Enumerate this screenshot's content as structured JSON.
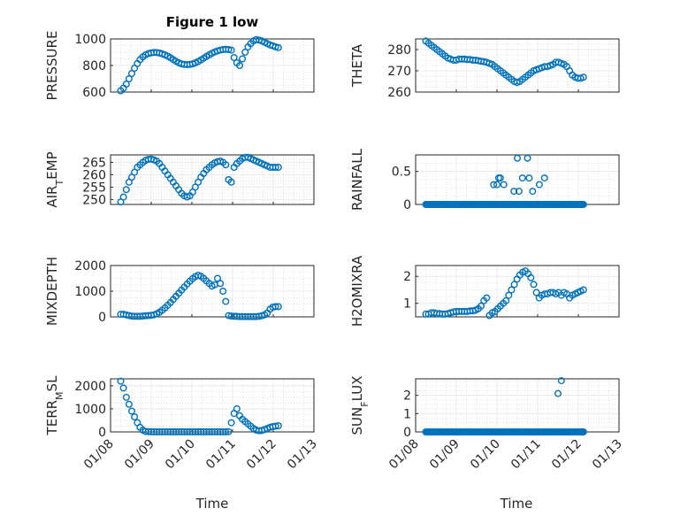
{
  "figure": {
    "title": "Figure 1 low",
    "xlabel": "Time",
    "marker_color": "#0072bd",
    "x_ticks": [
      "01/08",
      "01/09",
      "01/10",
      "01/11",
      "01/12",
      "01/13"
    ]
  },
  "chart_data": [
    {
      "type": "scatter",
      "title": "Figure 1 low",
      "xlabel": "",
      "ylabel": "PRESSURE",
      "xlim": [
        "2000-01-08",
        "2000-01-13"
      ],
      "ylim": [
        600,
        1000
      ],
      "yticks": [
        600,
        800,
        1000
      ],
      "ytick_labels": [
        "600",
        "800",
        "1000"
      ],
      "xticks_shown": false,
      "grid": true,
      "marker": "circle-open",
      "x_start": "2000-01-08 06:00",
      "x_end": "2000-01-12 03:00",
      "y_values": [
        610,
        630,
        660,
        700,
        740,
        780,
        815,
        845,
        865,
        880,
        890,
        895,
        898,
        897,
        894,
        888,
        880,
        870,
        858,
        845,
        832,
        820,
        812,
        808,
        806,
        808,
        812,
        820,
        830,
        842,
        855,
        868,
        880,
        892,
        902,
        910,
        916,
        920,
        922,
        920,
        916,
        860,
        820,
        800,
        850,
        900,
        940,
        965,
        985,
        995,
        992,
        985,
        975,
        965,
        955,
        948,
        940,
        935
      ]
    },
    {
      "type": "scatter",
      "title": "",
      "xlabel": "",
      "ylabel": "THETA",
      "xlim": [
        "2000-01-08",
        "2000-01-13"
      ],
      "ylim": [
        260,
        285
      ],
      "yticks": [
        260,
        270,
        280
      ],
      "ytick_labels": [
        "260",
        "270",
        "280"
      ],
      "xticks_shown": false,
      "grid": true,
      "marker": "circle-open",
      "x_start": "2000-01-08 06:00",
      "x_end": "2000-01-12 03:00",
      "y_values": [
        284,
        283,
        282,
        281,
        280,
        279,
        278,
        277,
        276,
        275.5,
        275,
        275,
        275.5,
        275.5,
        275.5,
        275.3,
        275.3,
        275,
        275,
        274.8,
        274.5,
        274.3,
        274,
        273.5,
        273,
        272,
        271,
        270,
        269,
        268,
        267,
        266,
        265,
        264.5,
        265,
        266,
        267,
        268,
        269,
        270,
        270.5,
        271,
        271.5,
        272,
        272,
        272.5,
        273,
        274,
        274,
        273.5,
        273,
        272,
        270,
        268,
        267,
        266.5,
        266.5,
        267
      ]
    },
    {
      "type": "scatter",
      "title": "",
      "xlabel": "",
      "ylabel": "AIR_TEMP",
      "xlim": [
        "2000-01-08",
        "2000-01-13"
      ],
      "ylim": [
        248,
        268
      ],
      "yticks": [
        250,
        255,
        260,
        265
      ],
      "ytick_labels": [
        "250",
        "255",
        "260",
        "265"
      ],
      "xticks_shown": false,
      "grid": true,
      "marker": "circle-open",
      "x_start": "2000-01-08 06:00",
      "x_end": "2000-01-12 03:00",
      "y_values": [
        249,
        251,
        254,
        257,
        259,
        261,
        263,
        264,
        265,
        265.8,
        266.2,
        266.3,
        266,
        265.5,
        264.5,
        263,
        261.5,
        260,
        258.5,
        257,
        255.5,
        254,
        252.5,
        251.5,
        251,
        251.5,
        253,
        255,
        257,
        259,
        260.5,
        262,
        263,
        264,
        264.8,
        265.3,
        265.5,
        265,
        264,
        258,
        257,
        263,
        264.5,
        265.5,
        266.5,
        267,
        267,
        266.5,
        266,
        265.5,
        265,
        264.5,
        264,
        263.5,
        263,
        263,
        263,
        263
      ]
    },
    {
      "type": "scatter",
      "title": "",
      "xlabel": "",
      "ylabel": "RAINFALL",
      "xlim": [
        "2000-01-08",
        "2000-01-13"
      ],
      "ylim": [
        0,
        0.75
      ],
      "yticks": [
        0,
        0.5
      ],
      "ytick_labels": [
        "0",
        "0.5"
      ],
      "xticks_shown": false,
      "grid": true,
      "marker": "circle-open",
      "baseline_zero": {
        "x_start": "2000-01-08 06:00",
        "x_end": "2000-01-12 03:00",
        "count": 150,
        "value": 0
      },
      "points": [
        {
          "x": "2000-01-09 22:00",
          "y": 0.3
        },
        {
          "x": "2000-01-10 00:00",
          "y": 0.3
        },
        {
          "x": "2000-01-10 01:00",
          "y": 0.4
        },
        {
          "x": "2000-01-10 02:00",
          "y": 0.4
        },
        {
          "x": "2000-01-10 04:00",
          "y": 0.3
        },
        {
          "x": "2000-01-10 10:00",
          "y": 0.2
        },
        {
          "x": "2000-01-10 12:00",
          "y": 0.7
        },
        {
          "x": "2000-01-10 13:00",
          "y": 0.2
        },
        {
          "x": "2000-01-10 15:00",
          "y": 0.4
        },
        {
          "x": "2000-01-10 18:00",
          "y": 0.7
        },
        {
          "x": "2000-01-10 19:00",
          "y": 0.4
        },
        {
          "x": "2000-01-10 21:00",
          "y": 0.2
        },
        {
          "x": "2000-01-11 01:00",
          "y": 0.3
        },
        {
          "x": "2000-01-11 04:00",
          "y": 0.4
        }
      ]
    },
    {
      "type": "scatter",
      "title": "",
      "xlabel": "",
      "ylabel": "MIXDEPTH",
      "xlim": [
        "2000-01-08",
        "2000-01-13"
      ],
      "ylim": [
        0,
        2000
      ],
      "yticks": [
        0,
        1000,
        2000
      ],
      "ytick_labels": [
        "0",
        "1000",
        "2000"
      ],
      "xticks_shown": false,
      "grid": true,
      "marker": "circle-open",
      "x_start": "2000-01-08 06:00",
      "x_end": "2000-01-12 03:00",
      "y_values": [
        100,
        100,
        80,
        50,
        30,
        20,
        20,
        20,
        30,
        40,
        50,
        60,
        80,
        120,
        180,
        260,
        350,
        450,
        560,
        680,
        800,
        920,
        1040,
        1160,
        1280,
        1390,
        1490,
        1570,
        1620,
        1580,
        1500,
        1400,
        1300,
        1200,
        1250,
        1500,
        1300,
        1000,
        600,
        50,
        30,
        20,
        20,
        10,
        10,
        10,
        10,
        10,
        10,
        10,
        20,
        40,
        80,
        150,
        300,
        380,
        400,
        400
      ]
    },
    {
      "type": "scatter",
      "title": "",
      "xlabel": "",
      "ylabel": "H2OMIXRA",
      "xlim": [
        "2000-01-08",
        "2000-01-13"
      ],
      "ylim": [
        0.5,
        2.4
      ],
      "yticks": [
        1,
        2
      ],
      "ytick_labels": [
        "1",
        "2"
      ],
      "xticks_shown": false,
      "grid": true,
      "marker": "circle-open",
      "x_start": "2000-01-08 06:00",
      "x_end": "2000-01-12 03:00",
      "y_values": [
        0.6,
        0.6,
        0.65,
        0.65,
        0.62,
        0.62,
        0.6,
        0.6,
        0.62,
        0.65,
        0.68,
        0.7,
        0.7,
        0.7,
        0.7,
        0.7,
        0.72,
        0.72,
        0.75,
        0.8,
        0.9,
        1.1,
        1.2,
        0.55,
        0.65,
        0.7,
        0.8,
        0.9,
        1.0,
        1.1,
        1.3,
        1.5,
        1.7,
        1.9,
        2.05,
        2.15,
        2.2,
        2.1,
        1.95,
        1.7,
        1.4,
        1.2,
        1.3,
        1.35,
        1.35,
        1.4,
        1.4,
        1.35,
        1.4,
        1.3,
        1.4,
        1.35,
        1.2,
        1.3,
        1.35,
        1.4,
        1.45,
        1.5
      ]
    },
    {
      "type": "scatter",
      "title": "",
      "xlabel": "Time",
      "ylabel": "TERR_MSL",
      "xlim": [
        "2000-01-08",
        "2000-01-13"
      ],
      "ylim": [
        0,
        2300
      ],
      "yticks": [
        0,
        1000,
        2000
      ],
      "ytick_labels": [
        "0",
        "1000",
        "2000"
      ],
      "xticks_shown": true,
      "grid": true,
      "marker": "circle-open",
      "x_start": "2000-01-08 06:00",
      "x_end": "2000-01-12 03:00",
      "y_values": [
        2200,
        1900,
        1500,
        1200,
        900,
        650,
        400,
        200,
        80,
        20,
        10,
        5,
        5,
        5,
        5,
        5,
        5,
        5,
        5,
        5,
        5,
        5,
        5,
        5,
        5,
        5,
        5,
        5,
        5,
        5,
        5,
        5,
        5,
        5,
        5,
        5,
        5,
        5,
        5,
        10,
        400,
        800,
        1000,
        700,
        550,
        450,
        350,
        250,
        150,
        80,
        50,
        60,
        100,
        150,
        200,
        230,
        250,
        270
      ]
    },
    {
      "type": "scatter",
      "title": "",
      "xlabel": "Time",
      "ylabel": "SUN_FLUX",
      "xlim": [
        "2000-01-08",
        "2000-01-13"
      ],
      "ylim": [
        0,
        2.9
      ],
      "yticks": [
        0,
        1,
        2
      ],
      "ytick_labels": [
        "0",
        "1",
        "2"
      ],
      "xticks_shown": true,
      "grid": true,
      "marker": "circle-open",
      "baseline_zero": {
        "x_start": "2000-01-08 06:00",
        "x_end": "2000-01-12 03:00",
        "count": 150,
        "value": 0
      },
      "points": [
        {
          "x": "2000-01-11 12:00",
          "y": 2.1
        },
        {
          "x": "2000-01-11 14:00",
          "y": 2.8
        }
      ]
    }
  ]
}
